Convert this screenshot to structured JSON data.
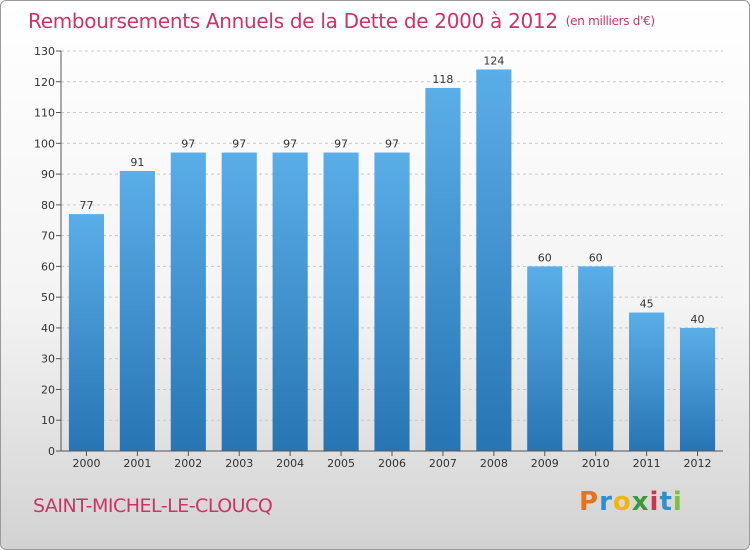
{
  "header": {
    "title": "Remboursements Annuels de la Dette de 2000 à 2012",
    "subtitle": "(en milliers d'€)"
  },
  "footer": {
    "place": "SAINT-MICHEL-LE-CLOUCQ",
    "logo_letters": [
      "P",
      "r",
      "o",
      "x",
      "i",
      "t",
      "i"
    ],
    "logo_colors": [
      "#e8731a",
      "#2e8fce",
      "#f2b705",
      "#3c9a3c",
      "#d2334c",
      "#2e8fce",
      "#7bbf3a"
    ]
  },
  "colors": {
    "bar_top": "#5aaee8",
    "bar_bottom": "#2775b3",
    "title": "#cc3366"
  },
  "chart_data": {
    "type": "bar",
    "categories": [
      "2000",
      "2001",
      "2002",
      "2003",
      "2004",
      "2005",
      "2006",
      "2007",
      "2008",
      "2009",
      "2010",
      "2011",
      "2012"
    ],
    "values": [
      77,
      91,
      97,
      97,
      97,
      97,
      97,
      118,
      124,
      60,
      60,
      45,
      40
    ],
    "ylim": [
      0,
      130
    ],
    "yticks": [
      0,
      10,
      20,
      30,
      40,
      50,
      60,
      70,
      80,
      90,
      100,
      110,
      120,
      130
    ],
    "grid": true
  }
}
